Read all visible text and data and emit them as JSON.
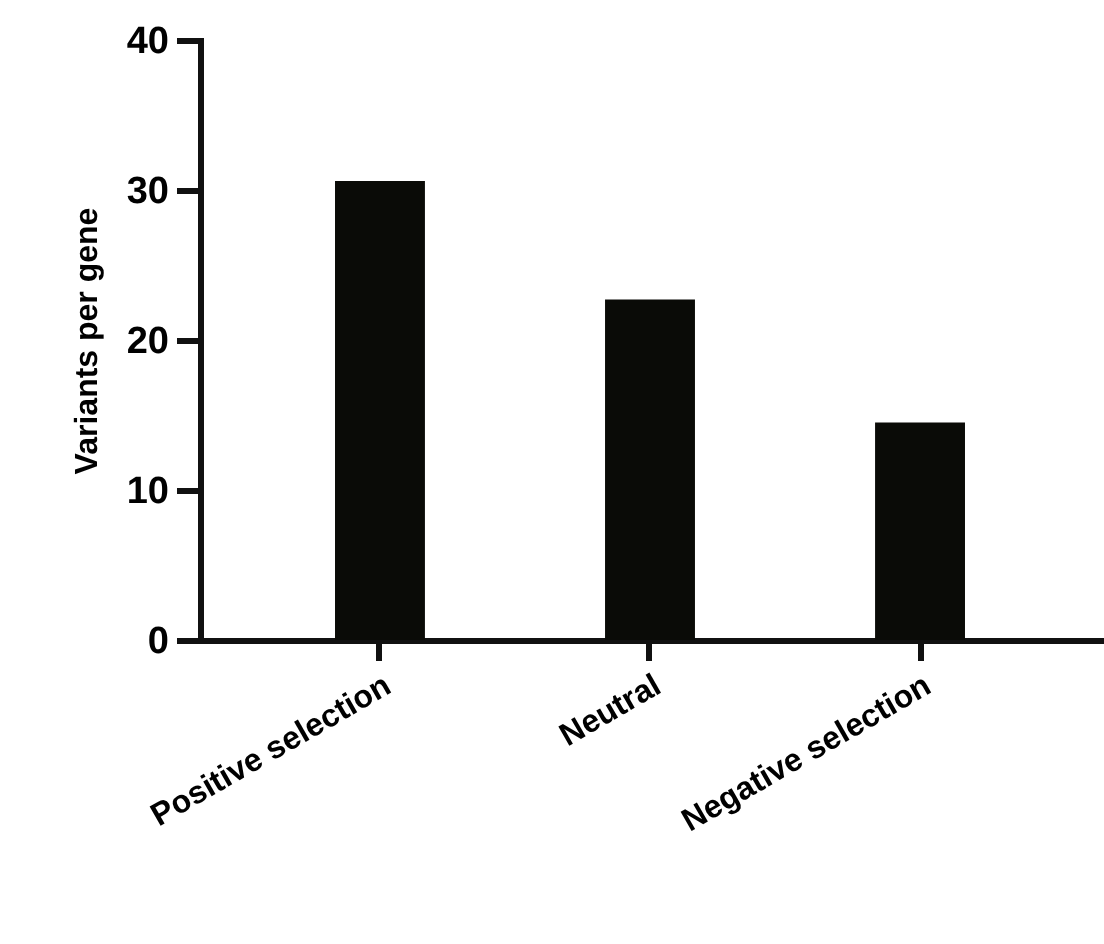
{
  "chart_data": {
    "type": "bar",
    "ylabel": "Variants per gene",
    "categories": [
      "Positive selection",
      "Neutral",
      "Negative selection"
    ],
    "values": [
      30.6,
      22.7,
      14.5
    ],
    "color": "#0a0b07",
    "ylim": [
      0,
      40
    ],
    "yticks": [
      0,
      10,
      20,
      30,
      40
    ],
    "grid": false
  }
}
